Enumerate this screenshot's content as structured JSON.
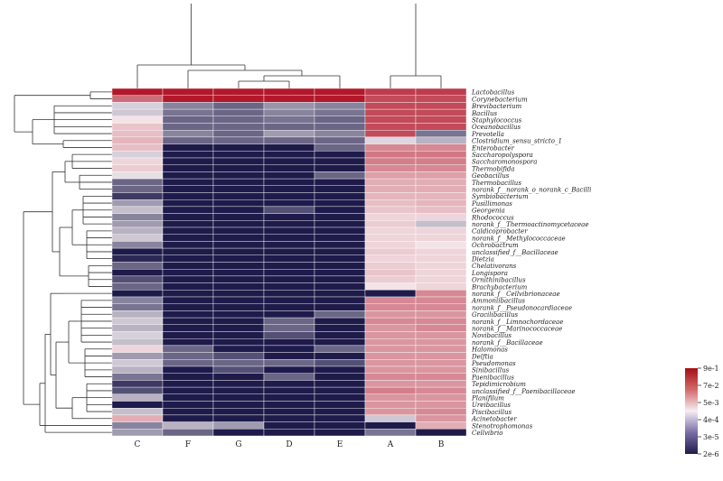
{
  "chart_data": {
    "type": "heatmap",
    "title": "",
    "columns": [
      "C",
      "F",
      "G",
      "D",
      "E",
      "A",
      "B"
    ],
    "rows": [
      "Lactobacillus",
      "Corynebacterium",
      "Brevibacterium",
      "Bacillus",
      "Staphylococcus",
      "Oceanobacillus",
      "Prevotella",
      "Clostridium_sensu_stricto_1",
      "Enterobacter",
      "Saccharopolyspora",
      "Saccharomonospora",
      "Thermobifida",
      "Geobacillus",
      "Thermobacillus",
      "norank_f__norank_o_norank_c_Bacilli",
      "Symbiobacterium",
      "Pusillimonas",
      "Georgenia",
      "Rhodococcus",
      "norank_f__Thermoactinomycetaceae",
      "Caldicoprobacter",
      "norank_f__Methylococcaceae",
      "Ochrobactrum",
      "unclassified_f__Bacillaceae",
      "Dietzia",
      "Chelativorans",
      "Longispora",
      "Ornithinibacillus",
      "Brachybacterium",
      "norank_f__Cellvibrionaceae",
      "Ammoniibacillus",
      "norank_f__Pseudonocardiaceae",
      "Gracilibacillus",
      "norank_f__Limnochordaceae",
      "norank_f__Marinococcaceae",
      "Novibacillus",
      "norank_f__Bacillaceae",
      "Halomonas",
      "Delftia",
      "Pseudomonas",
      "Sinibacillus",
      "Paenibacillus",
      "Tepidimicrobium",
      "unclassified_f__Paenibacillaceae",
      "Planifilum",
      "Ureibacillus",
      "Piscibacillus",
      "Acinetobacter",
      "Stenotrophomonas",
      "Cellvibrio"
    ],
    "values": [
      [
        0.9,
        0.9,
        0.9,
        0.9,
        0.9,
        0.3,
        0.3
      ],
      [
        0.07,
        0.9,
        0.9,
        0.9,
        0.9,
        0.2,
        0.2
      ],
      [
        0.0005,
        5e-05,
        2e-05,
        8e-05,
        5e-05,
        0.2,
        0.2
      ],
      [
        0.0004,
        3e-05,
        2e-05,
        5e-05,
        3e-05,
        0.2,
        0.2
      ],
      [
        0.002,
        2e-05,
        2e-05,
        3e-05,
        2e-05,
        0.2,
        0.2
      ],
      [
        0.005,
        2e-05,
        2e-05,
        2e-05,
        2e-05,
        0.2,
        0.2
      ],
      [
        0.006,
        5e-05,
        2e-05,
        0.0001,
        5e-05,
        0.2,
        3e-05
      ],
      [
        0.008,
        2e-05,
        2e-05,
        2e-05,
        2e-05,
        0.0006,
        0.0002
      ],
      [
        0.006,
        2e-06,
        2e-06,
        2e-06,
        2e-05,
        0.03,
        0.03
      ],
      [
        0.0005,
        2e-06,
        2e-06,
        2e-06,
        2e-06,
        0.05,
        0.05
      ],
      [
        0.003,
        2e-06,
        2e-06,
        2e-06,
        2e-06,
        0.04,
        0.04
      ],
      [
        0.004,
        2e-06,
        2e-06,
        2e-06,
        2e-06,
        0.03,
        0.03
      ],
      [
        0.0008,
        2e-06,
        2e-06,
        2e-06,
        2e-05,
        0.015,
        0.015
      ],
      [
        2e-05,
        2e-06,
        2e-06,
        2e-06,
        2e-06,
        0.01,
        0.01
      ],
      [
        2e-05,
        2e-06,
        2e-06,
        2e-06,
        2e-06,
        0.01,
        0.01
      ],
      [
        5e-06,
        2e-06,
        2e-06,
        2e-06,
        2e-06,
        0.008,
        0.008
      ],
      [
        0.0001,
        2e-06,
        2e-06,
        2e-06,
        2e-06,
        0.006,
        0.008
      ],
      [
        0.0003,
        2e-06,
        2e-06,
        1e-05,
        2e-06,
        0.005,
        0.006
      ],
      [
        5e-05,
        2e-06,
        2e-06,
        2e-06,
        2e-06,
        0.003,
        0.003
      ],
      [
        0.0001,
        2e-06,
        2e-06,
        2e-06,
        2e-06,
        0.004,
        0.0003
      ],
      [
        0.0002,
        2e-06,
        2e-06,
        2e-06,
        2e-06,
        0.003,
        0.003
      ],
      [
        0.0004,
        2e-06,
        2e-06,
        2e-06,
        2e-06,
        0.003,
        0.003
      ],
      [
        5e-05,
        2e-06,
        2e-06,
        2e-06,
        2e-06,
        0.003,
        0.002
      ],
      [
        2e-06,
        2e-06,
        2e-06,
        2e-06,
        2e-06,
        0.004,
        0.003
      ],
      [
        3e-06,
        2e-06,
        2e-06,
        2e-06,
        2e-06,
        0.003,
        0.003
      ],
      [
        2e-05,
        2e-06,
        2e-06,
        2e-06,
        2e-06,
        0.004,
        0.003
      ],
      [
        2e-06,
        2e-06,
        2e-06,
        2e-06,
        2e-06,
        0.005,
        0.003
      ],
      [
        1e-05,
        2e-06,
        2e-06,
        2e-06,
        2e-06,
        0.004,
        0.003
      ],
      [
        2e-05,
        2e-06,
        2e-06,
        2e-06,
        2e-06,
        0.002,
        0.003
      ],
      [
        2e-06,
        2e-06,
        2e-06,
        2e-06,
        2e-06,
        2e-06,
        0.03
      ],
      [
        5e-05,
        2e-06,
        2e-06,
        2e-06,
        2e-06,
        0.03,
        0.03
      ],
      [
        3e-05,
        2e-06,
        2e-06,
        2e-06,
        2e-06,
        0.03,
        0.03
      ],
      [
        0.0002,
        2e-06,
        2e-06,
        2e-06,
        2e-05,
        0.02,
        0.02
      ],
      [
        0.0004,
        2e-06,
        2e-06,
        2e-05,
        2e-06,
        0.03,
        0.03
      ],
      [
        0.0002,
        2e-06,
        2e-06,
        2e-05,
        2e-06,
        0.02,
        0.03
      ],
      [
        0.0005,
        2e-06,
        2e-06,
        1e-05,
        2e-06,
        0.02,
        0.02
      ],
      [
        0.0003,
        2e-06,
        2e-06,
        2e-06,
        2e-06,
        0.02,
        0.02
      ],
      [
        0.003,
        2e-05,
        2e-06,
        2e-06,
        2e-05,
        0.02,
        0.02
      ],
      [
        0.0001,
        2e-05,
        1e-05,
        2e-06,
        2e-06,
        0.02,
        0.02
      ],
      [
        0.0004,
        2e-05,
        2e-05,
        2e-05,
        1e-05,
        0.02,
        0.02
      ],
      [
        0.0002,
        2e-06,
        1e-05,
        2e-06,
        2e-06,
        0.02,
        0.02
      ],
      [
        3e-05,
        2e-06,
        2e-06,
        2e-05,
        2e-06,
        0.03,
        0.03
      ],
      [
        5e-06,
        2e-06,
        2e-06,
        2e-06,
        2e-06,
        0.02,
        0.02
      ],
      [
        1e-05,
        2e-06,
        2e-06,
        2e-06,
        2e-06,
        0.04,
        0.03
      ],
      [
        0.0002,
        2e-06,
        2e-06,
        2e-06,
        2e-06,
        0.02,
        0.02
      ],
      [
        2e-06,
        2e-06,
        2e-06,
        2e-06,
        2e-06,
        0.02,
        0.02
      ],
      [
        0.0003,
        2e-06,
        2e-06,
        2e-06,
        2e-06,
        0.02,
        0.03
      ],
      [
        0.01,
        2e-06,
        2e-06,
        2e-06,
        2e-06,
        0.0004,
        0.02
      ],
      [
        5e-05,
        0.0002,
        0.0001,
        2e-06,
        2e-06,
        2e-06,
        0.01
      ],
      [
        0.0001,
        2e-05,
        2e-06,
        2e-06,
        2e-06,
        3e-05,
        2e-06
      ]
    ],
    "legend": {
      "ticks": [
        "9e-1",
        "7e-2",
        "5e-3",
        "4e-4",
        "3e-5",
        "2e-6"
      ],
      "tick_values": [
        0.9,
        0.07,
        0.005,
        0.0004,
        3e-05,
        2e-06
      ],
      "scale": "log",
      "position": "right",
      "colors": {
        "high": "#b2182b",
        "mid": "#f7f0f3",
        "low": "#1e1b4b"
      }
    }
  }
}
